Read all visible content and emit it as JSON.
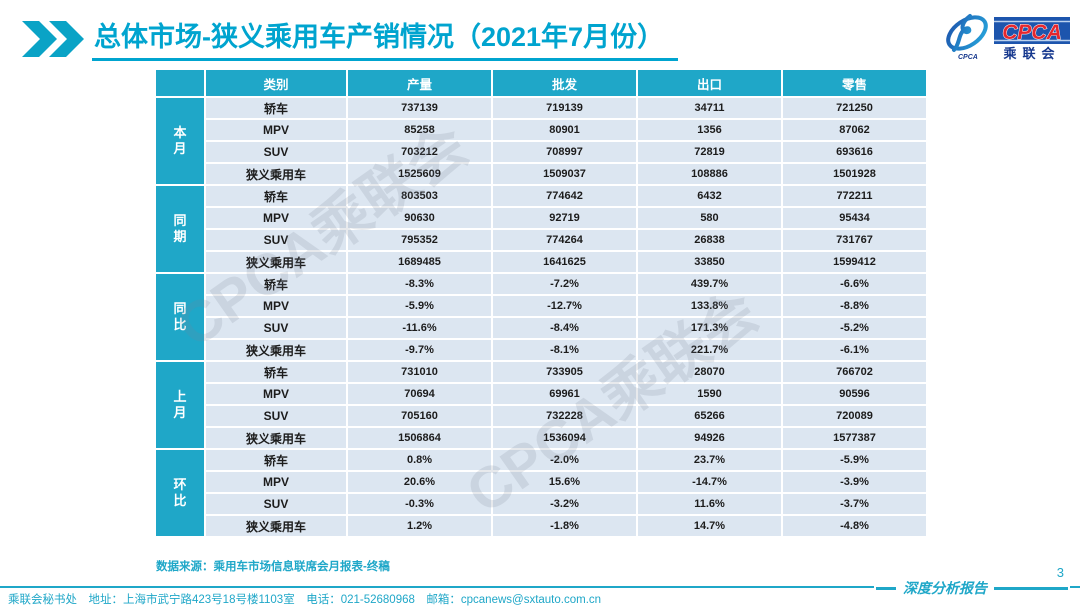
{
  "header": {
    "title": "总体市场-狭义乘用车产销情况（2021年7月份）",
    "chevron_icon": "double-chevron-right",
    "logo": {
      "cpca": "CPCA",
      "subtext": "乘联会",
      "swoosh_caption": "CPCA"
    }
  },
  "table": {
    "columns": [
      "类别",
      "产量",
      "批发",
      "出口",
      "零售"
    ],
    "groups": [
      {
        "label": "本月",
        "rows": [
          {
            "category": "轿车",
            "values": [
              "737139",
              "719139",
              "34711",
              "721250"
            ]
          },
          {
            "category": "MPV",
            "values": [
              "85258",
              "80901",
              "1356",
              "87062"
            ]
          },
          {
            "category": "SUV",
            "values": [
              "703212",
              "708997",
              "72819",
              "693616"
            ]
          },
          {
            "category": "狭义乘用车",
            "values": [
              "1525609",
              "1509037",
              "108886",
              "1501928"
            ]
          }
        ]
      },
      {
        "label": "同期",
        "rows": [
          {
            "category": "轿车",
            "values": [
              "803503",
              "774642",
              "6432",
              "772211"
            ]
          },
          {
            "category": "MPV",
            "values": [
              "90630",
              "92719",
              "580",
              "95434"
            ]
          },
          {
            "category": "SUV",
            "values": [
              "795352",
              "774264",
              "26838",
              "731767"
            ]
          },
          {
            "category": "狭义乘用车",
            "values": [
              "1689485",
              "1641625",
              "33850",
              "1599412"
            ]
          }
        ]
      },
      {
        "label": "同比",
        "rows": [
          {
            "category": "轿车",
            "values": [
              "-8.3%",
              "-7.2%",
              "439.7%",
              "-6.6%"
            ]
          },
          {
            "category": "MPV",
            "values": [
              "-5.9%",
              "-12.7%",
              "133.8%",
              "-8.8%"
            ]
          },
          {
            "category": "SUV",
            "values": [
              "-11.6%",
              "-8.4%",
              "171.3%",
              "-5.2%"
            ]
          },
          {
            "category": "狭义乘用车",
            "values": [
              "-9.7%",
              "-8.1%",
              "221.7%",
              "-6.1%"
            ]
          }
        ]
      },
      {
        "label": "上月",
        "rows": [
          {
            "category": "轿车",
            "values": [
              "731010",
              "733905",
              "28070",
              "766702"
            ]
          },
          {
            "category": "MPV",
            "values": [
              "70694",
              "69961",
              "1590",
              "90596"
            ]
          },
          {
            "category": "SUV",
            "values": [
              "705160",
              "732228",
              "65266",
              "720089"
            ]
          },
          {
            "category": "狭义乘用车",
            "values": [
              "1506864",
              "1536094",
              "94926",
              "1577387"
            ]
          }
        ]
      },
      {
        "label": "环比",
        "rows": [
          {
            "category": "轿车",
            "values": [
              "0.8%",
              "-2.0%",
              "23.7%",
              "-5.9%"
            ]
          },
          {
            "category": "MPV",
            "values": [
              "20.6%",
              "15.6%",
              "-14.7%",
              "-3.9%"
            ]
          },
          {
            "category": "SUV",
            "values": [
              "-0.3%",
              "-3.2%",
              "11.6%",
              "-3.7%"
            ]
          },
          {
            "category": "狭义乘用车",
            "values": [
              "1.2%",
              "-1.8%",
              "14.7%",
              "-4.8%"
            ]
          }
        ]
      }
    ]
  },
  "watermark": "CPCA乘联会",
  "source_note": "数据来源：乘用车市场信息联席会月报表-终稿",
  "footer": {
    "left": "乘联会秘书处　地址：上海市武宁路423号18号楼1103室　电话：021-52680968　邮箱：cpcanews@sxtauto.com.cn",
    "report_label": "深度分析报告",
    "page_number": "3"
  },
  "colors": {
    "accent": "#1fa7c8",
    "title": "#00a4cf",
    "rowbg": "#dce6f1",
    "ink": "#1c1c1c",
    "logo-blue": "#1d55ad",
    "logo-red": "#e5272e",
    "logo-navy": "#16388e"
  }
}
